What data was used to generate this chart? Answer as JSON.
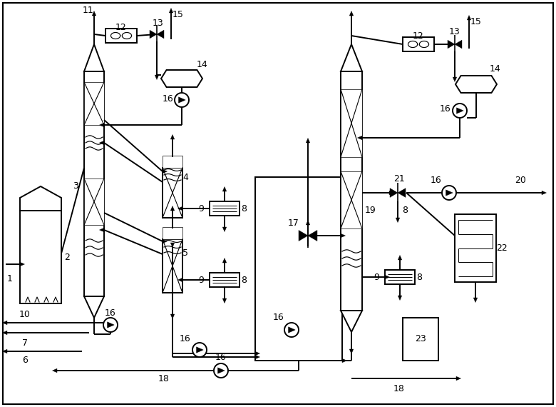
{
  "fig_w": 7.8,
  "fig_h": 5.7,
  "dpi": 100,
  "bg": "#ffffff",
  "lc": "#000000",
  "lw": 1.4
}
